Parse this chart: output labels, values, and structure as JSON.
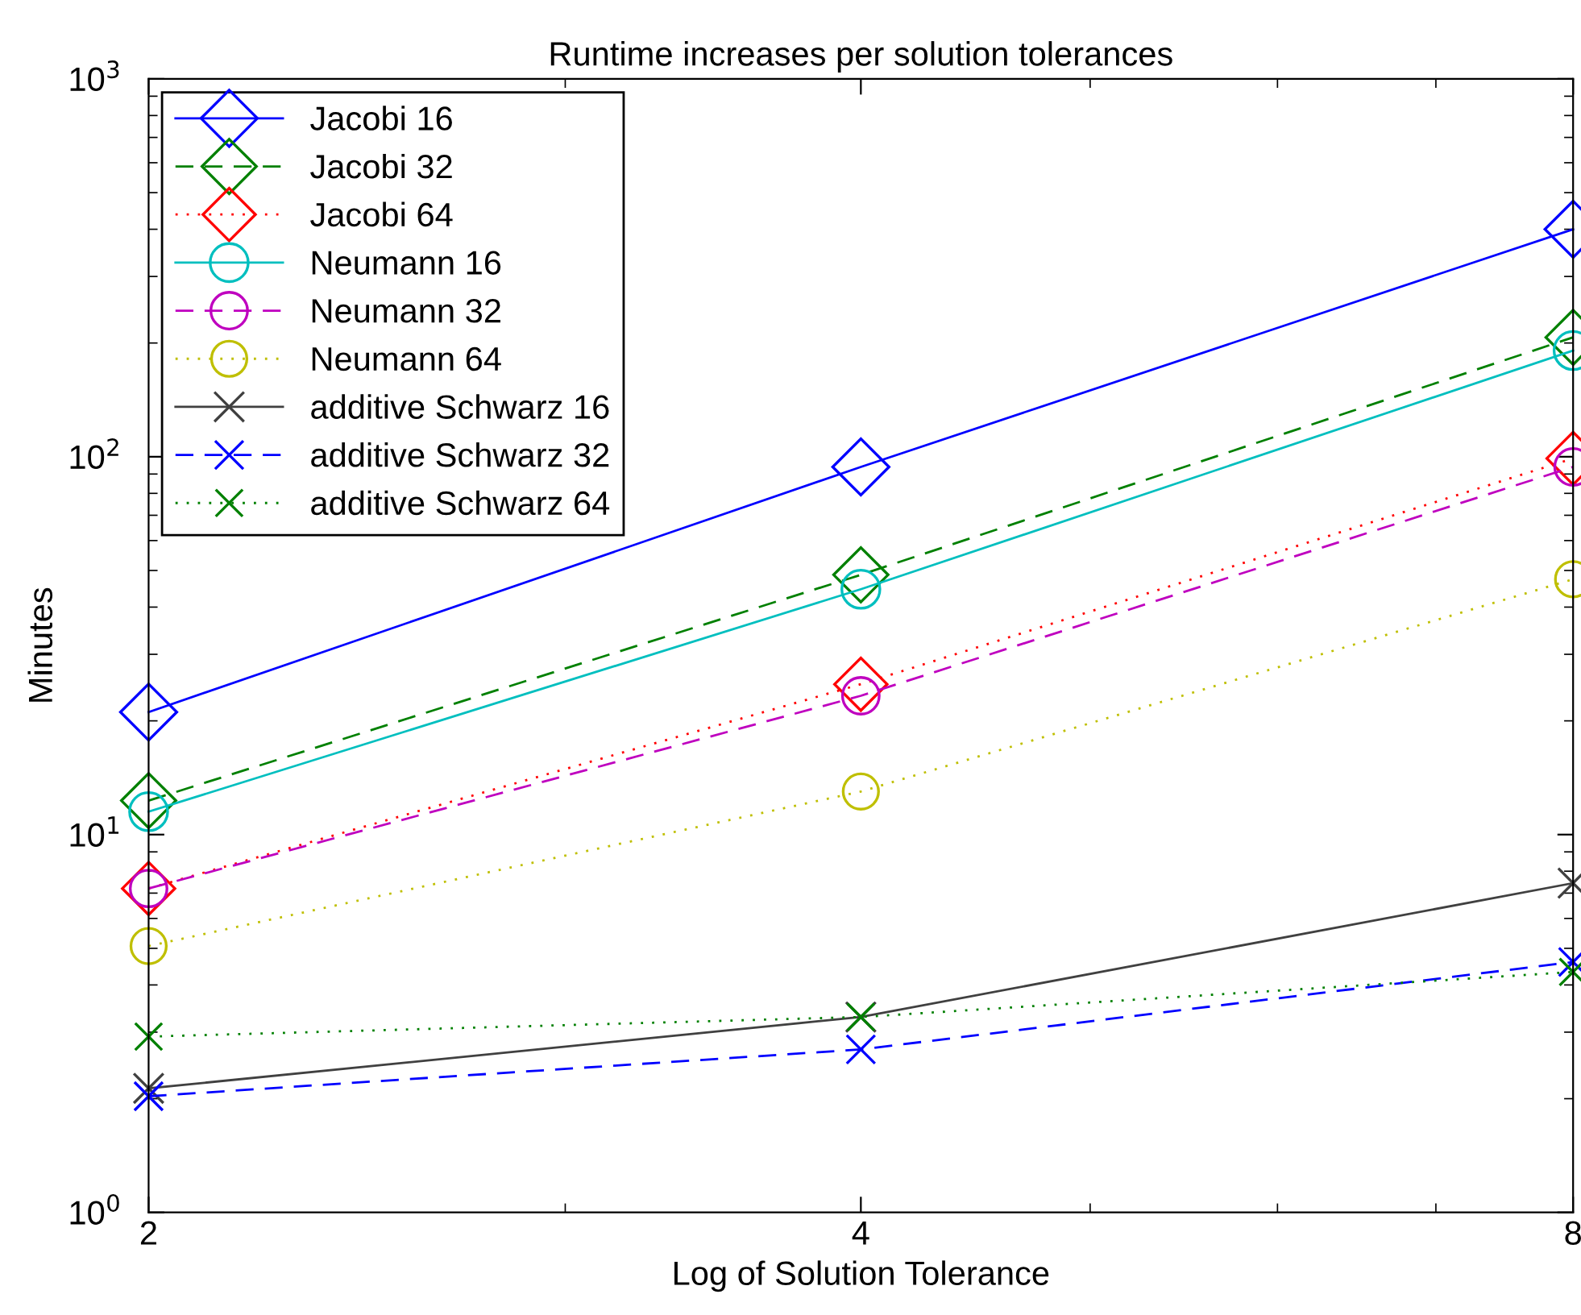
{
  "chart_data": {
    "type": "line",
    "title": "Runtime increases per solution tolerances",
    "xlabel": "Log of Solution Tolerance",
    "ylabel": "Minutes",
    "x": [
      2,
      4,
      8
    ],
    "log": "xy",
    "xlim": [
      2,
      8
    ],
    "xticks": [
      2,
      4,
      8
    ],
    "ylim": [
      1,
      1000
    ],
    "yticks": [
      {
        "value": 1,
        "label": "10$^{0}$"
      },
      {
        "value": 10,
        "label": "10$^{1}$"
      },
      {
        "value": 100,
        "label": "10$^{2}$"
      },
      {
        "value": 1000,
        "label": "10$^{3}$"
      }
    ],
    "grid": false,
    "legend": "top left",
    "series": [
      {
        "name": "Jacobi 16",
        "color": "#0000ff",
        "marker": "diamond",
        "line_style": "solid",
        "values": [
          21.1,
          94,
          400
        ]
      },
      {
        "name": "Jacobi 32",
        "color": "#008000",
        "marker": "diamond",
        "line_style": "dashed",
        "values": [
          12.3,
          48.7,
          207
        ]
      },
      {
        "name": "Jacobi 64",
        "color": "#ff0000",
        "marker": "diamond",
        "line_style": "dotted",
        "values": [
          7.2,
          25,
          99
        ]
      },
      {
        "name": "Neumann 16",
        "color": "#00bfbf",
        "marker": "circle",
        "line_style": "solid",
        "values": [
          11.5,
          44.6,
          191
        ]
      },
      {
        "name": "Neumann 32",
        "color": "#bf00bf",
        "marker": "circle",
        "line_style": "dashed",
        "values": [
          7.2,
          23.3,
          94
        ]
      },
      {
        "name": "Neumann 64",
        "color": "#bfbf00",
        "marker": "circle",
        "line_style": "dotted",
        "values": [
          5.07,
          13.0,
          47.4
        ]
      },
      {
        "name": "additive Schwarz 16",
        "color": "#404040",
        "marker": "cross",
        "line_style": "solid",
        "values": [
          2.13,
          3.29,
          7.44
        ]
      },
      {
        "name": "additive Schwarz 32",
        "color": "#0000ff",
        "marker": "cross",
        "line_style": "dashed",
        "values": [
          2.03,
          2.7,
          4.6
        ]
      },
      {
        "name": "additive Schwarz 64",
        "color": "#008000",
        "marker": "cross",
        "line_style": "dotted",
        "values": [
          2.92,
          3.29,
          4.33
        ]
      }
    ]
  }
}
